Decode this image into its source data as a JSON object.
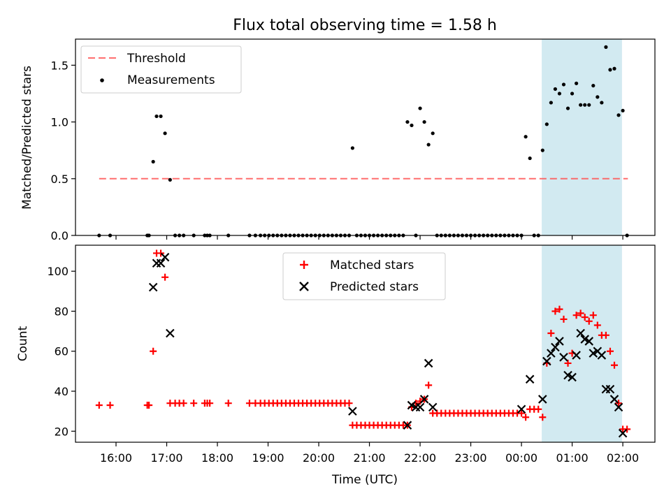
{
  "figure": {
    "title": "Flux total observing time = 1.58 h",
    "xlabel": "Time (UTC)",
    "xticks": [
      "16:00",
      "17:00",
      "18:00",
      "19:00",
      "20:00",
      "21:00",
      "22:00",
      "23:00",
      "00:00",
      "01:00",
      "02:00"
    ]
  },
  "chart_data": [
    {
      "type": "scatter",
      "title": "Flux total observing time = 1.58 h",
      "ylabel": "Matched/Predicted stars",
      "xlim": [
        "15:12",
        "02:38"
      ],
      "ylim": [
        0,
        1.73
      ],
      "yticks": [
        "0.0",
        "0.5",
        "1.0",
        "1.5"
      ],
      "ytick_values": [
        0,
        0.5,
        1.0,
        1.5
      ],
      "legend": {
        "location": "upper left",
        "entries": [
          "Threshold",
          "Measurements"
        ]
      },
      "shaded_span": {
        "from": "00:24",
        "to": "01:59",
        "color": "#add8e6"
      },
      "threshold": {
        "name": "Threshold",
        "value": 0.5,
        "from": "15:40",
        "to": "02:06",
        "color": "#ff5555",
        "style": "dashed"
      },
      "series": [
        {
          "name": "Measurements",
          "color": "#000000",
          "marker": "dot",
          "points": [
            [
              "15:40",
              0
            ],
            [
              "15:53",
              0
            ],
            [
              "16:37",
              0
            ],
            [
              "16:39",
              0
            ],
            [
              "16:44",
              0.65
            ],
            [
              "16:48",
              1.05
            ],
            [
              "16:53",
              1.05
            ],
            [
              "16:58",
              0.9
            ],
            [
              "17:04",
              0.49
            ],
            [
              "17:10",
              0
            ],
            [
              "17:15",
              0
            ],
            [
              "17:20",
              0
            ],
            [
              "17:32",
              0
            ],
            [
              "17:45",
              0
            ],
            [
              "17:48",
              0
            ],
            [
              "17:51",
              0
            ],
            [
              "18:13",
              0
            ],
            [
              "18:38",
              0
            ],
            [
              "18:45",
              0
            ],
            [
              "18:51",
              0
            ],
            [
              "18:56",
              0
            ],
            [
              "19:01",
              0
            ],
            [
              "19:06",
              0
            ],
            [
              "19:11",
              0
            ],
            [
              "19:16",
              0
            ],
            [
              "19:21",
              0
            ],
            [
              "19:26",
              0
            ],
            [
              "19:31",
              0
            ],
            [
              "19:36",
              0
            ],
            [
              "19:41",
              0
            ],
            [
              "19:46",
              0
            ],
            [
              "19:51",
              0
            ],
            [
              "19:56",
              0
            ],
            [
              "20:01",
              0
            ],
            [
              "20:06",
              0
            ],
            [
              "20:11",
              0
            ],
            [
              "20:16",
              0
            ],
            [
              "20:21",
              0
            ],
            [
              "20:26",
              0
            ],
            [
              "20:31",
              0
            ],
            [
              "20:36",
              0
            ],
            [
              "20:40",
              0.77
            ],
            [
              "20:45",
              0
            ],
            [
              "20:50",
              0
            ],
            [
              "20:55",
              0
            ],
            [
              "21:00",
              0
            ],
            [
              "21:05",
              0
            ],
            [
              "21:10",
              0
            ],
            [
              "21:15",
              0
            ],
            [
              "21:20",
              0
            ],
            [
              "21:25",
              0
            ],
            [
              "21:30",
              0
            ],
            [
              "21:35",
              0
            ],
            [
              "21:40",
              0
            ],
            [
              "21:45",
              1.0
            ],
            [
              "21:50",
              0.97
            ],
            [
              "21:55",
              0
            ],
            [
              "22:00",
              1.12
            ],
            [
              "22:05",
              1.0
            ],
            [
              "22:10",
              0.8
            ],
            [
              "22:15",
              0.9
            ],
            [
              "22:20",
              0
            ],
            [
              "22:25",
              0
            ],
            [
              "22:30",
              0
            ],
            [
              "22:35",
              0
            ],
            [
              "22:40",
              0
            ],
            [
              "22:45",
              0
            ],
            [
              "22:50",
              0
            ],
            [
              "22:55",
              0
            ],
            [
              "23:00",
              0
            ],
            [
              "23:05",
              0
            ],
            [
              "23:10",
              0
            ],
            [
              "23:15",
              0
            ],
            [
              "23:20",
              0
            ],
            [
              "23:25",
              0
            ],
            [
              "23:30",
              0
            ],
            [
              "23:35",
              0
            ],
            [
              "23:40",
              0
            ],
            [
              "23:45",
              0
            ],
            [
              "23:50",
              0
            ],
            [
              "23:55",
              0
            ],
            [
              "00:00",
              0
            ],
            [
              "00:05",
              0.87
            ],
            [
              "00:10",
              0.68
            ],
            [
              "00:15",
              0
            ],
            [
              "00:20",
              0
            ],
            [
              "00:25",
              0.75
            ],
            [
              "00:30",
              0.98
            ],
            [
              "00:35",
              1.17
            ],
            [
              "00:40",
              1.29
            ],
            [
              "00:45",
              1.25
            ],
            [
              "00:50",
              1.33
            ],
            [
              "00:55",
              1.12
            ],
            [
              "01:00",
              1.25
            ],
            [
              "01:05",
              1.34
            ],
            [
              "01:10",
              1.15
            ],
            [
              "01:15",
              1.15
            ],
            [
              "01:20",
              1.15
            ],
            [
              "01:25",
              1.32
            ],
            [
              "01:30",
              1.22
            ],
            [
              "01:35",
              1.17
            ],
            [
              "01:40",
              1.66
            ],
            [
              "01:45",
              1.46
            ],
            [
              "01:50",
              1.47
            ],
            [
              "01:55",
              1.06
            ],
            [
              "02:00",
              1.1
            ],
            [
              "02:05",
              0
            ]
          ]
        }
      ]
    },
    {
      "type": "scatter",
      "ylabel": "Count",
      "xlabel": "Time (UTC)",
      "xlim": [
        "15:12",
        "02:38"
      ],
      "ylim": [
        14.5,
        113
      ],
      "yticks": [
        "20",
        "40",
        "60",
        "80",
        "100"
      ],
      "ytick_values": [
        20,
        40,
        60,
        80,
        100
      ],
      "legend": {
        "location": "upper center",
        "entries": [
          "Matched stars",
          "Predicted stars"
        ]
      },
      "shaded_span": {
        "from": "00:24",
        "to": "01:59",
        "color": "#add8e6"
      },
      "series": [
        {
          "name": "Matched stars",
          "color": "#ff0000",
          "marker": "plus",
          "points": [
            [
              "15:40",
              33
            ],
            [
              "15:53",
              33
            ],
            [
              "16:37",
              33
            ],
            [
              "16:39",
              33
            ],
            [
              "16:44",
              60
            ],
            [
              "16:48",
              109
            ],
            [
              "16:53",
              109
            ],
            [
              "16:58",
              97
            ],
            [
              "17:04",
              34
            ],
            [
              "17:10",
              34
            ],
            [
              "17:15",
              34
            ],
            [
              "17:20",
              34
            ],
            [
              "17:32",
              34
            ],
            [
              "17:45",
              34
            ],
            [
              "17:48",
              34
            ],
            [
              "17:51",
              34
            ],
            [
              "18:13",
              34
            ],
            [
              "18:38",
              34
            ],
            [
              "18:45",
              34
            ],
            [
              "18:51",
              34
            ],
            [
              "18:56",
              34
            ],
            [
              "19:01",
              34
            ],
            [
              "19:06",
              34
            ],
            [
              "19:11",
              34
            ],
            [
              "19:16",
              34
            ],
            [
              "19:21",
              34
            ],
            [
              "19:26",
              34
            ],
            [
              "19:31",
              34
            ],
            [
              "19:36",
              34
            ],
            [
              "19:41",
              34
            ],
            [
              "19:46",
              34
            ],
            [
              "19:51",
              34
            ],
            [
              "19:56",
              34
            ],
            [
              "20:01",
              34
            ],
            [
              "20:06",
              34
            ],
            [
              "20:11",
              34
            ],
            [
              "20:16",
              34
            ],
            [
              "20:21",
              34
            ],
            [
              "20:26",
              34
            ],
            [
              "20:31",
              34
            ],
            [
              "20:36",
              34
            ],
            [
              "20:40",
              23
            ],
            [
              "20:45",
              23
            ],
            [
              "20:50",
              23
            ],
            [
              "20:55",
              23
            ],
            [
              "21:00",
              23
            ],
            [
              "21:05",
              23
            ],
            [
              "21:10",
              23
            ],
            [
              "21:15",
              23
            ],
            [
              "21:20",
              23
            ],
            [
              "21:25",
              23
            ],
            [
              "21:30",
              23
            ],
            [
              "21:35",
              23
            ],
            [
              "21:40",
              23
            ],
            [
              "21:45",
              23
            ],
            [
              "21:50",
              32
            ],
            [
              "21:55",
              34
            ],
            [
              "22:00",
              35
            ],
            [
              "22:05",
              36
            ],
            [
              "22:10",
              43
            ],
            [
              "22:15",
              29
            ],
            [
              "22:20",
              29
            ],
            [
              "22:25",
              29
            ],
            [
              "22:30",
              29
            ],
            [
              "22:35",
              29
            ],
            [
              "22:40",
              29
            ],
            [
              "22:45",
              29
            ],
            [
              "22:50",
              29
            ],
            [
              "22:55",
              29
            ],
            [
              "23:00",
              29
            ],
            [
              "23:05",
              29
            ],
            [
              "23:10",
              29
            ],
            [
              "23:15",
              29
            ],
            [
              "23:20",
              29
            ],
            [
              "23:25",
              29
            ],
            [
              "23:30",
              29
            ],
            [
              "23:35",
              29
            ],
            [
              "23:40",
              29
            ],
            [
              "23:45",
              29
            ],
            [
              "23:50",
              29
            ],
            [
              "23:55",
              29
            ],
            [
              "00:00",
              29
            ],
            [
              "00:05",
              27
            ],
            [
              "00:10",
              31
            ],
            [
              "00:15",
              31
            ],
            [
              "00:20",
              31
            ],
            [
              "00:25",
              27
            ],
            [
              "00:30",
              54
            ],
            [
              "00:35",
              69
            ],
            [
              "00:40",
              80
            ],
            [
              "00:45",
              81
            ],
            [
              "00:50",
              76
            ],
            [
              "00:55",
              54
            ],
            [
              "01:00",
              59
            ],
            [
              "01:05",
              78
            ],
            [
              "01:10",
              79
            ],
            [
              "01:15",
              77
            ],
            [
              "01:20",
              75
            ],
            [
              "01:25",
              78
            ],
            [
              "01:30",
              73
            ],
            [
              "01:35",
              68
            ],
            [
              "01:40",
              68
            ],
            [
              "01:45",
              60
            ],
            [
              "01:50",
              53
            ],
            [
              "01:55",
              34
            ],
            [
              "02:00",
              21
            ],
            [
              "02:05",
              21
            ]
          ]
        },
        {
          "name": "Predicted stars",
          "color": "#000000",
          "marker": "x",
          "points": [
            [
              "16:44",
              92
            ],
            [
              "16:48",
              104
            ],
            [
              "16:53",
              104
            ],
            [
              "16:58",
              107
            ],
            [
              "17:04",
              69
            ],
            [
              "20:40",
              30
            ],
            [
              "21:45",
              23
            ],
            [
              "21:50",
              33
            ],
            [
              "21:55",
              32
            ],
            [
              "22:00",
              32
            ],
            [
              "22:05",
              36
            ],
            [
              "22:10",
              54
            ],
            [
              "22:15",
              32
            ],
            [
              "00:00",
              31
            ],
            [
              "00:10",
              46
            ],
            [
              "00:25",
              36
            ],
            [
              "00:30",
              55
            ],
            [
              "00:35",
              59
            ],
            [
              "00:40",
              62
            ],
            [
              "00:45",
              65
            ],
            [
              "00:50",
              57
            ],
            [
              "00:55",
              48
            ],
            [
              "01:00",
              47
            ],
            [
              "01:05",
              58
            ],
            [
              "01:10",
              69
            ],
            [
              "01:15",
              66
            ],
            [
              "01:20",
              65
            ],
            [
              "01:25",
              59
            ],
            [
              "01:30",
              60
            ],
            [
              "01:35",
              58
            ],
            [
              "01:40",
              41
            ],
            [
              "01:45",
              41
            ],
            [
              "01:50",
              36
            ],
            [
              "01:55",
              32
            ],
            [
              "02:00",
              19
            ]
          ]
        }
      ]
    }
  ]
}
